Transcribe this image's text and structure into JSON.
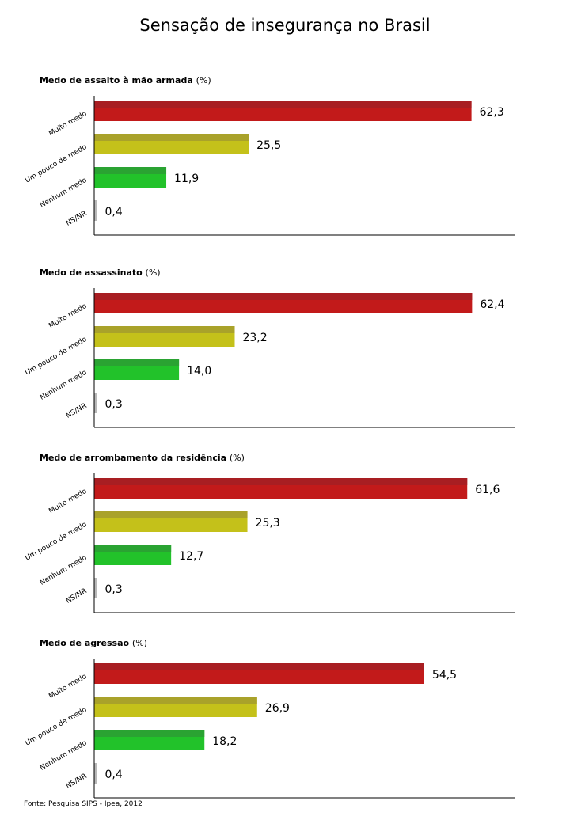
{
  "title": "Sensação de insegurança no Brasil",
  "source": "Fonte: Pesquisa SIPS - Ipea, 2012",
  "colors": {
    "muito": "#c21a1a",
    "muito_top": "#a81e22",
    "pouco": "#c4c11a",
    "pouco_top": "#a9a22a",
    "nenhum": "#22c22a",
    "nenhum_top": "#2aa332",
    "nsnr": "#b8b8b8"
  },
  "chart_data": [
    {
      "type": "bar",
      "title": "Medo de assalto à mão armada",
      "unit": "(%)",
      "categories": [
        "Muito medo",
        "Um pouco de medo",
        "Nenhum medo",
        "NS/NR"
      ],
      "values": [
        62.3,
        25.5,
        11.9,
        0.4
      ],
      "value_labels": [
        "62,3",
        "25,5",
        "11,9",
        "0,4"
      ]
    },
    {
      "type": "bar",
      "title": "Medo de assassinato",
      "unit": "(%)",
      "categories": [
        "Muito medo",
        "Um pouco de medo",
        "Nenhum medo",
        "NS/NR"
      ],
      "values": [
        62.4,
        23.2,
        14.0,
        0.3
      ],
      "value_labels": [
        "62,4",
        "23,2",
        "14,0",
        "0,3"
      ]
    },
    {
      "type": "bar",
      "title": "Medo de arrombamento da residência",
      "unit": "(%)",
      "categories": [
        "Muito medo",
        "Um pouco de medo",
        "Nenhum medo",
        "NS/NR"
      ],
      "values": [
        61.6,
        25.3,
        12.7,
        0.3
      ],
      "value_labels": [
        "61,6",
        "25,3",
        "12,7",
        "0,3"
      ]
    },
    {
      "type": "bar",
      "title": "Medo de agressão",
      "unit": "(%)",
      "categories": [
        "Muito medo",
        "Um pouco de medo",
        "Nenhum medo",
        "NS/NR"
      ],
      "values": [
        54.5,
        26.9,
        18.2,
        0.4
      ],
      "value_labels": [
        "54,5",
        "26,9",
        "18,2",
        "0,4"
      ]
    }
  ]
}
